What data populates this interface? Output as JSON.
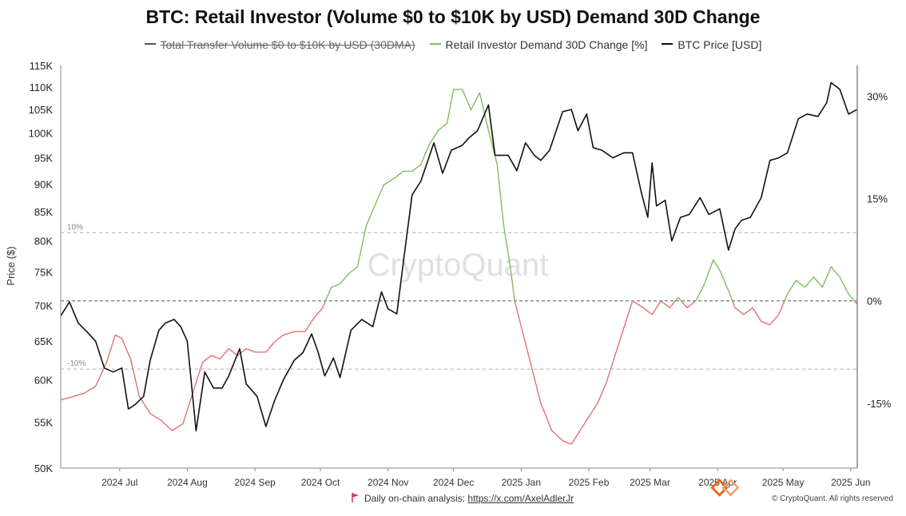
{
  "title": "BTC: Retail Investor (Volume $0 to $10K by USD) Demand 30D Change",
  "legend": [
    {
      "label": "Total Transfer Volume $0 to $10K by USD (30DMA)",
      "color": "#555555",
      "struck": true
    },
    {
      "label": "Retail Investor Demand 30D Change [%]",
      "color": "#7cbf5e",
      "struck": false
    },
    {
      "label": "BTC Price [USD]",
      "color": "#111111",
      "struck": false
    }
  ],
  "watermark": "CryptoQuant",
  "footer": {
    "prefix": "Daily on-chain analysis:",
    "link": "https://x.com/AxelAdlerJr",
    "copyright": "© CryptoQuant. All rights reserved"
  },
  "chart_data": {
    "type": "line",
    "ylabel": "Price ($)",
    "left_axis": {
      "scale": "log",
      "ylim": [
        50000,
        115000
      ],
      "ticks": [
        50000,
        55000,
        60000,
        65000,
        70000,
        75000,
        80000,
        85000,
        90000,
        95000,
        100000,
        105000,
        110000,
        115000
      ],
      "tick_labels": [
        "50K",
        "55K",
        "60K",
        "65K",
        "70K",
        "75K",
        "80K",
        "85K",
        "90K",
        "95K",
        "100K",
        "105K",
        "110K",
        "115K"
      ]
    },
    "right_axis": {
      "ylim": [
        -0.245,
        0.345
      ],
      "ticks": [
        -0.15,
        0,
        0.15,
        0.3
      ],
      "tick_labels": [
        "-15%",
        "0%",
        "15%",
        "30%"
      ]
    },
    "x_axis": {
      "range": [
        "2024-06-04",
        "2025-06-04"
      ],
      "tick_dates": [
        "2024-07-01",
        "2024-08-01",
        "2024-09-01",
        "2024-10-01",
        "2024-11-01",
        "2024-12-01",
        "2025-01-01",
        "2025-02-01",
        "2025-03-01",
        "2025-04-01",
        "2025-05-01",
        "2025-06-01"
      ],
      "tick_labels": [
        "2024 Jul",
        "2024 Aug",
        "2024 Sep",
        "2024 Oct",
        "2024 Nov",
        "2024 Dec",
        "2025 Jan",
        "2025 Feb",
        "2025 Mar",
        "2025 Apr",
        "2025 May",
        "2025 Jun"
      ]
    },
    "reference_lines": [
      {
        "value": 0.1,
        "label": "10%"
      },
      {
        "value": 0,
        "label": ""
      },
      {
        "value": -0.1,
        "label": "-10%"
      }
    ],
    "grid": false,
    "legend_position": "top",
    "series": [
      {
        "name": "BTC Price [USD]",
        "axis": "left",
        "color": "#111111",
        "points": [
          [
            "2024-06-04",
            68500
          ],
          [
            "2024-06-08",
            70500
          ],
          [
            "2024-06-12",
            67500
          ],
          [
            "2024-06-16",
            66300
          ],
          [
            "2024-06-20",
            65000
          ],
          [
            "2024-06-24",
            61500
          ],
          [
            "2024-06-28",
            61000
          ],
          [
            "2024-07-02",
            61500
          ],
          [
            "2024-07-05",
            56500
          ],
          [
            "2024-07-08",
            57000
          ],
          [
            "2024-07-12",
            58000
          ],
          [
            "2024-07-15",
            62500
          ],
          [
            "2024-07-19",
            66500
          ],
          [
            "2024-07-22",
            67500
          ],
          [
            "2024-07-26",
            68000
          ],
          [
            "2024-07-29",
            67000
          ],
          [
            "2024-08-01",
            65000
          ],
          [
            "2024-08-05",
            54000
          ],
          [
            "2024-08-09",
            61000
          ],
          [
            "2024-08-13",
            59000
          ],
          [
            "2024-08-17",
            59000
          ],
          [
            "2024-08-20",
            60500
          ],
          [
            "2024-08-25",
            64000
          ],
          [
            "2024-08-28",
            59500
          ],
          [
            "2024-09-02",
            58000
          ],
          [
            "2024-09-06",
            54500
          ],
          [
            "2024-09-10",
            57500
          ],
          [
            "2024-09-14",
            60000
          ],
          [
            "2024-09-19",
            62500
          ],
          [
            "2024-09-23",
            63500
          ],
          [
            "2024-09-27",
            66000
          ],
          [
            "2024-09-30",
            63500
          ],
          [
            "2024-10-03",
            60500
          ],
          [
            "2024-10-07",
            62800
          ],
          [
            "2024-10-10",
            60300
          ],
          [
            "2024-10-15",
            66500
          ],
          [
            "2024-10-20",
            68000
          ],
          [
            "2024-10-25",
            67000
          ],
          [
            "2024-10-29",
            72000
          ],
          [
            "2024-11-01",
            69500
          ],
          [
            "2024-11-05",
            68800
          ],
          [
            "2024-11-08",
            76500
          ],
          [
            "2024-11-12",
            88000
          ],
          [
            "2024-11-16",
            90500
          ],
          [
            "2024-11-22",
            98000
          ],
          [
            "2024-11-26",
            92000
          ],
          [
            "2024-11-30",
            96500
          ],
          [
            "2024-12-05",
            97500
          ],
          [
            "2024-12-08",
            99000
          ],
          [
            "2024-12-12",
            100500
          ],
          [
            "2024-12-17",
            106000
          ],
          [
            "2024-12-20",
            95500
          ],
          [
            "2024-12-26",
            95500
          ],
          [
            "2024-12-30",
            92500
          ],
          [
            "2025-01-03",
            98000
          ],
          [
            "2025-01-07",
            95500
          ],
          [
            "2025-01-10",
            94500
          ],
          [
            "2025-01-14",
            96500
          ],
          [
            "2025-01-20",
            104500
          ],
          [
            "2025-01-24",
            105000
          ],
          [
            "2025-01-27",
            100500
          ],
          [
            "2025-01-31",
            104000
          ],
          [
            "2025-02-03",
            97000
          ],
          [
            "2025-02-07",
            96500
          ],
          [
            "2025-02-12",
            95000
          ],
          [
            "2025-02-17",
            96000
          ],
          [
            "2025-02-21",
            96000
          ],
          [
            "2025-02-25",
            88500
          ],
          [
            "2025-02-28",
            84000
          ],
          [
            "2025-03-02",
            94000
          ],
          [
            "2025-03-04",
            86000
          ],
          [
            "2025-03-08",
            87000
          ],
          [
            "2025-03-11",
            80000
          ],
          [
            "2025-03-15",
            84000
          ],
          [
            "2025-03-19",
            84500
          ],
          [
            "2025-03-24",
            87500
          ],
          [
            "2025-03-28",
            84500
          ],
          [
            "2025-04-02",
            85500
          ],
          [
            "2025-04-06",
            78500
          ],
          [
            "2025-04-09",
            82000
          ],
          [
            "2025-04-12",
            83500
          ],
          [
            "2025-04-16",
            84000
          ],
          [
            "2025-04-21",
            87500
          ],
          [
            "2025-04-25",
            94500
          ],
          [
            "2025-04-29",
            95000
          ],
          [
            "2025-05-03",
            96000
          ],
          [
            "2025-05-08",
            103000
          ],
          [
            "2025-05-12",
            104000
          ],
          [
            "2025-05-17",
            103500
          ],
          [
            "2025-05-21",
            106500
          ],
          [
            "2025-05-23",
            111000
          ],
          [
            "2025-05-27",
            109500
          ],
          [
            "2025-05-31",
            104000
          ],
          [
            "2025-06-04",
            105000
          ]
        ]
      },
      {
        "name": "Retail Investor Demand 30D Change [%]",
        "axis": "right",
        "color_above_zero": "#7cbf5e",
        "color_below_zero": "#e0736f",
        "points": [
          [
            "2024-06-04",
            -0.145
          ],
          [
            "2024-06-10",
            -0.14
          ],
          [
            "2024-06-15",
            -0.135
          ],
          [
            "2024-06-20",
            -0.125
          ],
          [
            "2024-06-25",
            -0.09
          ],
          [
            "2024-06-29",
            -0.05
          ],
          [
            "2024-07-02",
            -0.055
          ],
          [
            "2024-07-06",
            -0.085
          ],
          [
            "2024-07-10",
            -0.14
          ],
          [
            "2024-07-15",
            -0.165
          ],
          [
            "2024-07-20",
            -0.175
          ],
          [
            "2024-07-25",
            -0.19
          ],
          [
            "2024-07-30",
            -0.18
          ],
          [
            "2024-08-04",
            -0.13
          ],
          [
            "2024-08-08",
            -0.09
          ],
          [
            "2024-08-12",
            -0.08
          ],
          [
            "2024-08-16",
            -0.085
          ],
          [
            "2024-08-20",
            -0.07
          ],
          [
            "2024-08-24",
            -0.08
          ],
          [
            "2024-08-28",
            -0.07
          ],
          [
            "2024-09-01",
            -0.075
          ],
          [
            "2024-09-06",
            -0.075
          ],
          [
            "2024-09-10",
            -0.06
          ],
          [
            "2024-09-14",
            -0.05
          ],
          [
            "2024-09-19",
            -0.045
          ],
          [
            "2024-09-24",
            -0.045
          ],
          [
            "2024-09-28",
            -0.025
          ],
          [
            "2024-10-02",
            -0.01
          ],
          [
            "2024-10-06",
            0.02
          ],
          [
            "2024-10-10",
            0.025
          ],
          [
            "2024-10-14",
            0.04
          ],
          [
            "2024-10-18",
            0.05
          ],
          [
            "2024-10-22",
            0.11
          ],
          [
            "2024-10-26",
            0.14
          ],
          [
            "2024-10-30",
            0.17
          ],
          [
            "2024-11-04",
            0.18
          ],
          [
            "2024-11-08",
            0.19
          ],
          [
            "2024-11-12",
            0.19
          ],
          [
            "2024-11-16",
            0.2
          ],
          [
            "2024-11-20",
            0.23
          ],
          [
            "2024-11-24",
            0.25
          ],
          [
            "2024-11-28",
            0.26
          ],
          [
            "2024-12-01",
            0.31
          ],
          [
            "2024-12-05",
            0.31
          ],
          [
            "2024-12-09",
            0.28
          ],
          [
            "2024-12-13",
            0.305
          ],
          [
            "2024-12-17",
            0.25
          ],
          [
            "2024-12-21",
            0.2
          ],
          [
            "2024-12-24",
            0.11
          ],
          [
            "2024-12-27",
            0.05
          ],
          [
            "2024-12-29",
            0.0
          ],
          [
            "2025-01-02",
            -0.05
          ],
          [
            "2025-01-06",
            -0.1
          ],
          [
            "2025-01-10",
            -0.15
          ],
          [
            "2025-01-15",
            -0.19
          ],
          [
            "2025-01-20",
            -0.205
          ],
          [
            "2025-01-24",
            -0.21
          ],
          [
            "2025-01-28",
            -0.19
          ],
          [
            "2025-02-01",
            -0.17
          ],
          [
            "2025-02-05",
            -0.15
          ],
          [
            "2025-02-09",
            -0.12
          ],
          [
            "2025-02-13",
            -0.08
          ],
          [
            "2025-02-17",
            -0.04
          ],
          [
            "2025-02-21",
            0.0
          ],
          [
            "2025-02-26",
            -0.01
          ],
          [
            "2025-03-02",
            -0.02
          ],
          [
            "2025-03-06",
            0.0
          ],
          [
            "2025-03-10",
            -0.01
          ],
          [
            "2025-03-14",
            0.005
          ],
          [
            "2025-03-18",
            -0.01
          ],
          [
            "2025-03-22",
            0.0
          ],
          [
            "2025-03-26",
            0.025
          ],
          [
            "2025-03-30",
            0.06
          ],
          [
            "2025-04-02",
            0.045
          ],
          [
            "2025-04-06",
            0.015
          ],
          [
            "2025-04-09",
            -0.01
          ],
          [
            "2025-04-13",
            -0.02
          ],
          [
            "2025-04-17",
            -0.01
          ],
          [
            "2025-04-21",
            -0.03
          ],
          [
            "2025-04-25",
            -0.035
          ],
          [
            "2025-04-29",
            -0.02
          ],
          [
            "2025-05-03",
            0.01
          ],
          [
            "2025-05-07",
            0.03
          ],
          [
            "2025-05-11",
            0.02
          ],
          [
            "2025-05-15",
            0.035
          ],
          [
            "2025-05-19",
            0.02
          ],
          [
            "2025-05-23",
            0.05
          ],
          [
            "2025-05-27",
            0.035
          ],
          [
            "2025-05-31",
            0.01
          ],
          [
            "2025-06-04",
            -0.005
          ]
        ]
      }
    ]
  }
}
